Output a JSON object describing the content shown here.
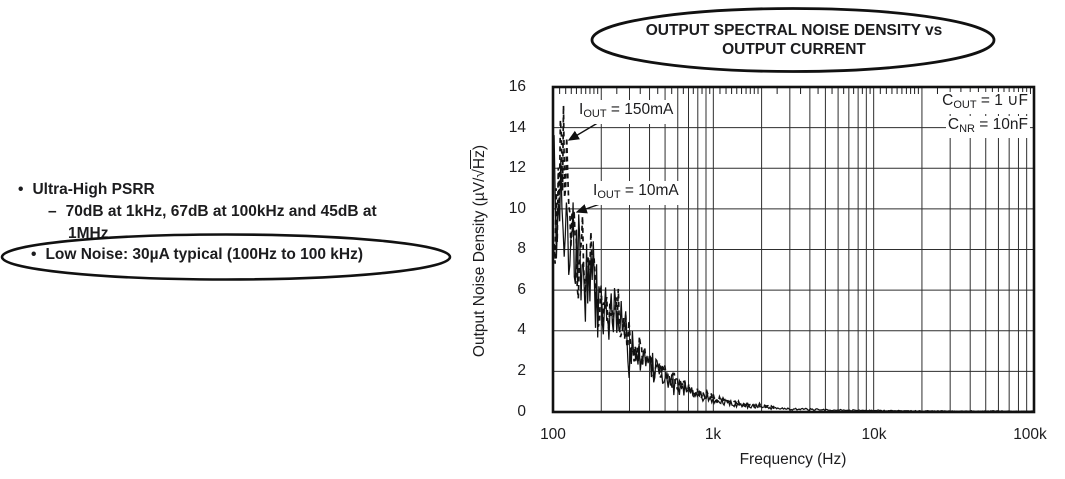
{
  "left_panel": {
    "bullet_char": "•",
    "dash_char": "–",
    "item1": "Ultra-High PSRR",
    "item1_sub_line1": "70dB at 1kHz, 67dB at 100kHz and 45dB at",
    "item1_sub_line2": "1MHz",
    "item2": "Low Noise: 30µA typical (100Hz to 100 kHz)"
  },
  "chart_data": {
    "type": "line",
    "title_line1": "OUTPUT SPECTRAL NOISE DENSITY vs",
    "title_line2": "OUTPUT CURRENT",
    "xlabel": "Frequency (Hz)",
    "ylabel": "Output Noise Density (µV/√Hz)",
    "ylabel_parts": {
      "prefix": "Output Noise Density (µV/",
      "radical": "√",
      "under_radical": "Hz",
      "suffix": ")"
    },
    "x_scale": "log",
    "xlim": [
      100,
      100000
    ],
    "ylim": [
      0,
      16
    ],
    "grid": true,
    "legend_position": "none",
    "x_tick_labels": [
      "100",
      "1k",
      "10k",
      "100k"
    ],
    "y_tick_labels": [
      "16",
      "14",
      "12",
      "10",
      "8",
      "6",
      "4",
      "2",
      "0"
    ],
    "conditions": {
      "line1": {
        "main": "C",
        "sub": "OUT",
        "rest": " = 1 ∪F"
      },
      "line2": {
        "main": "C",
        "sub": "NR",
        "rest": " = 10nF"
      }
    },
    "series": [
      {
        "name": "IOUT = 150mA",
        "label": {
          "main": "I",
          "sub": "OUT",
          "rest": " = 150mA"
        },
        "line_style": "dashed",
        "color": "#111111",
        "noise_amp": 0.2,
        "seed": 13,
        "samples": 210,
        "points": [
          [
            100,
            8.2
          ],
          [
            105,
            9.6
          ],
          [
            110,
            11.8
          ],
          [
            114,
            13.2
          ],
          [
            118,
            13.7
          ],
          [
            122,
            12.0
          ],
          [
            126,
            9.8
          ],
          [
            131,
            8.2
          ],
          [
            137,
            9.0
          ],
          [
            144,
            7.2
          ],
          [
            152,
            7.8
          ],
          [
            162,
            6.4
          ],
          [
            172,
            7.0
          ],
          [
            185,
            5.8
          ],
          [
            200,
            5.2
          ],
          [
            215,
            5.6
          ],
          [
            232,
            4.6
          ],
          [
            255,
            4.9
          ],
          [
            280,
            3.9
          ],
          [
            310,
            3.4
          ],
          [
            350,
            2.9
          ],
          [
            400,
            2.4
          ],
          [
            460,
            2.0
          ],
          [
            530,
            1.7
          ],
          [
            620,
            1.35
          ],
          [
            720,
            1.1
          ],
          [
            850,
            0.9
          ],
          [
            1000,
            0.72
          ],
          [
            1200,
            0.55
          ],
          [
            1500,
            0.42
          ],
          [
            1900,
            0.33
          ],
          [
            2400,
            0.27
          ]
        ]
      },
      {
        "name": "IOUT = 10mA",
        "label": {
          "main": "I",
          "sub": "OUT",
          "rest": " = 10mA"
        },
        "line_style": "solid",
        "color": "#111111",
        "noise_amp": 0.3,
        "seed": 7,
        "samples": 430,
        "points": [
          [
            100,
            10.5
          ],
          [
            104,
            11.3
          ],
          [
            108,
            8.0
          ],
          [
            112,
            10.6
          ],
          [
            116,
            7.4
          ],
          [
            120,
            9.8
          ],
          [
            125,
            8.4
          ],
          [
            130,
            10.0
          ],
          [
            136,
            7.0
          ],
          [
            142,
            8.6
          ],
          [
            150,
            6.4
          ],
          [
            158,
            7.6
          ],
          [
            167,
            5.8
          ],
          [
            175,
            6.6
          ],
          [
            185,
            5.4
          ],
          [
            196,
            6.0
          ],
          [
            205,
            4.8
          ],
          [
            215,
            5.3
          ],
          [
            228,
            4.4
          ],
          [
            242,
            4.8
          ],
          [
            258,
            3.8
          ],
          [
            275,
            4.1
          ],
          [
            295,
            3.1
          ],
          [
            320,
            3.3
          ],
          [
            350,
            2.6
          ],
          [
            385,
            2.8
          ],
          [
            420,
            2.1
          ],
          [
            460,
            2.2
          ],
          [
            500,
            1.7
          ],
          [
            550,
            1.5
          ],
          [
            610,
            1.3
          ],
          [
            680,
            1.05
          ],
          [
            760,
            0.9
          ],
          [
            850,
            0.75
          ],
          [
            950,
            0.65
          ],
          [
            1100,
            0.5
          ],
          [
            1300,
            0.4
          ],
          [
            1600,
            0.3
          ],
          [
            2000,
            0.24
          ],
          [
            2600,
            0.18
          ],
          [
            3400,
            0.14
          ],
          [
            4500,
            0.11
          ],
          [
            6000,
            0.09
          ],
          [
            8000,
            0.08
          ],
          [
            11000,
            0.07
          ],
          [
            16000,
            0.06
          ],
          [
            25000,
            0.05
          ],
          [
            40000,
            0.045
          ],
          [
            65000,
            0.04
          ],
          [
            100000,
            0.04
          ]
        ]
      }
    ]
  }
}
